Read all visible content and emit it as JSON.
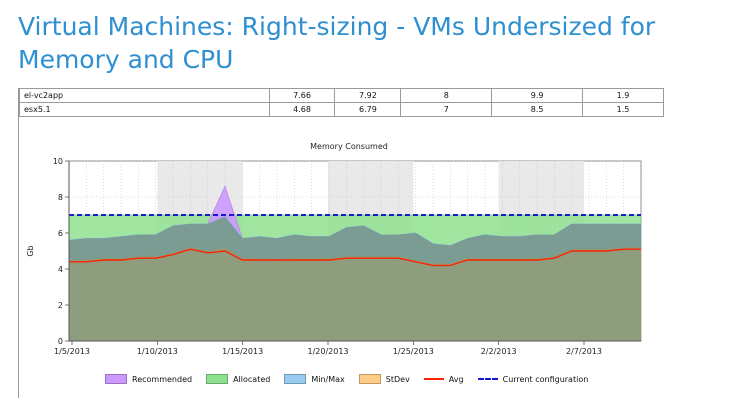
{
  "heading": "Virtual Machines: Right-sizing - VMs Undersized for Memory and CPU",
  "table": {
    "rows": [
      {
        "name": "el-vc2app",
        "c1": "7.66",
        "c2": "7.92",
        "c3": "8",
        "c4": "9.9",
        "c5": "1.9"
      },
      {
        "name": "esx5.1",
        "c1": "4.68",
        "c2": "6.79",
        "c3": "7",
        "c4": "8.5",
        "c5": "1.5"
      }
    ]
  },
  "chart_data": {
    "type": "area",
    "title": "Memory Consumed",
    "ylabel": "Gb",
    "xlabel": "",
    "ylim": [
      0,
      10
    ],
    "y_ticks": [
      0,
      2,
      4,
      6,
      8,
      10
    ],
    "x_tick_labels": [
      "1/5/2013",
      "1/10/2013",
      "1/15/2013",
      "1/20/2013",
      "1/25/2013",
      "2/2/2013",
      "2/7/2013"
    ],
    "grid": true,
    "legend_position": "bottom",
    "series": [
      {
        "name": "Recommended",
        "color": "#cc99ff",
        "values": [
          5.6,
          5.7,
          5.7,
          5.8,
          5.9,
          5.9,
          6.4,
          6.5,
          6.5,
          8.6,
          5.7,
          5.8,
          5.7,
          5.9,
          5.8,
          5.8,
          6.3,
          6.4,
          5.9,
          5.9,
          6.0,
          5.4,
          5.3,
          5.7,
          5.9,
          5.8,
          5.8,
          5.9,
          5.9,
          6.5,
          6.5,
          6.5,
          6.5,
          6.5
        ]
      },
      {
        "name": "Allocated",
        "color": "#8fe08f",
        "values": [
          7,
          7,
          7,
          7,
          7,
          7,
          7,
          7,
          7,
          7,
          7,
          7,
          7,
          7,
          7,
          7,
          7,
          7,
          7,
          7,
          7,
          7,
          7,
          7,
          7,
          7,
          7,
          7,
          7,
          7,
          7,
          7,
          7,
          7
        ]
      },
      {
        "name": "Min/Max",
        "color": "#99ccee",
        "values": [
          5.6,
          5.7,
          5.7,
          5.8,
          5.9,
          5.9,
          6.4,
          6.5,
          6.5,
          6.9,
          5.7,
          5.8,
          5.7,
          5.9,
          5.8,
          5.8,
          6.3,
          6.4,
          5.9,
          5.9,
          6.0,
          5.4,
          5.3,
          5.7,
          5.9,
          5.8,
          5.8,
          5.9,
          5.9,
          6.5,
          6.5,
          6.5,
          6.5,
          6.5
        ]
      },
      {
        "name": "StDev",
        "color": "#ffcc88",
        "values": [
          4.5,
          4.5,
          4.6,
          4.6,
          4.7,
          4.7,
          4.9,
          5.2,
          5.0,
          5.2,
          4.6,
          4.6,
          4.5,
          4.6,
          4.6,
          4.6,
          4.7,
          4.7,
          4.7,
          4.7,
          4.5,
          4.3,
          4.3,
          4.6,
          4.6,
          4.6,
          4.6,
          4.6,
          4.7,
          5.1,
          5.1,
          5.1,
          5.2,
          5.2
        ]
      },
      {
        "name": "Avg",
        "color": "#ff2200",
        "values": [
          4.4,
          4.4,
          4.5,
          4.5,
          4.6,
          4.6,
          4.8,
          5.1,
          4.9,
          5.0,
          4.5,
          4.5,
          4.5,
          4.5,
          4.5,
          4.5,
          4.6,
          4.6,
          4.6,
          4.6,
          4.4,
          4.2,
          4.2,
          4.5,
          4.5,
          4.5,
          4.5,
          4.5,
          4.6,
          5.0,
          5.0,
          5.0,
          5.1,
          5.1
        ]
      },
      {
        "name": "Current configuration",
        "color": "#1a1acc",
        "values": [
          7,
          7,
          7,
          7,
          7,
          7,
          7,
          7,
          7,
          7,
          7,
          7,
          7,
          7,
          7,
          7,
          7,
          7,
          7,
          7,
          7,
          7,
          7,
          7,
          7,
          7,
          7,
          7,
          7,
          7,
          7,
          7,
          7,
          7
        ]
      }
    ]
  }
}
